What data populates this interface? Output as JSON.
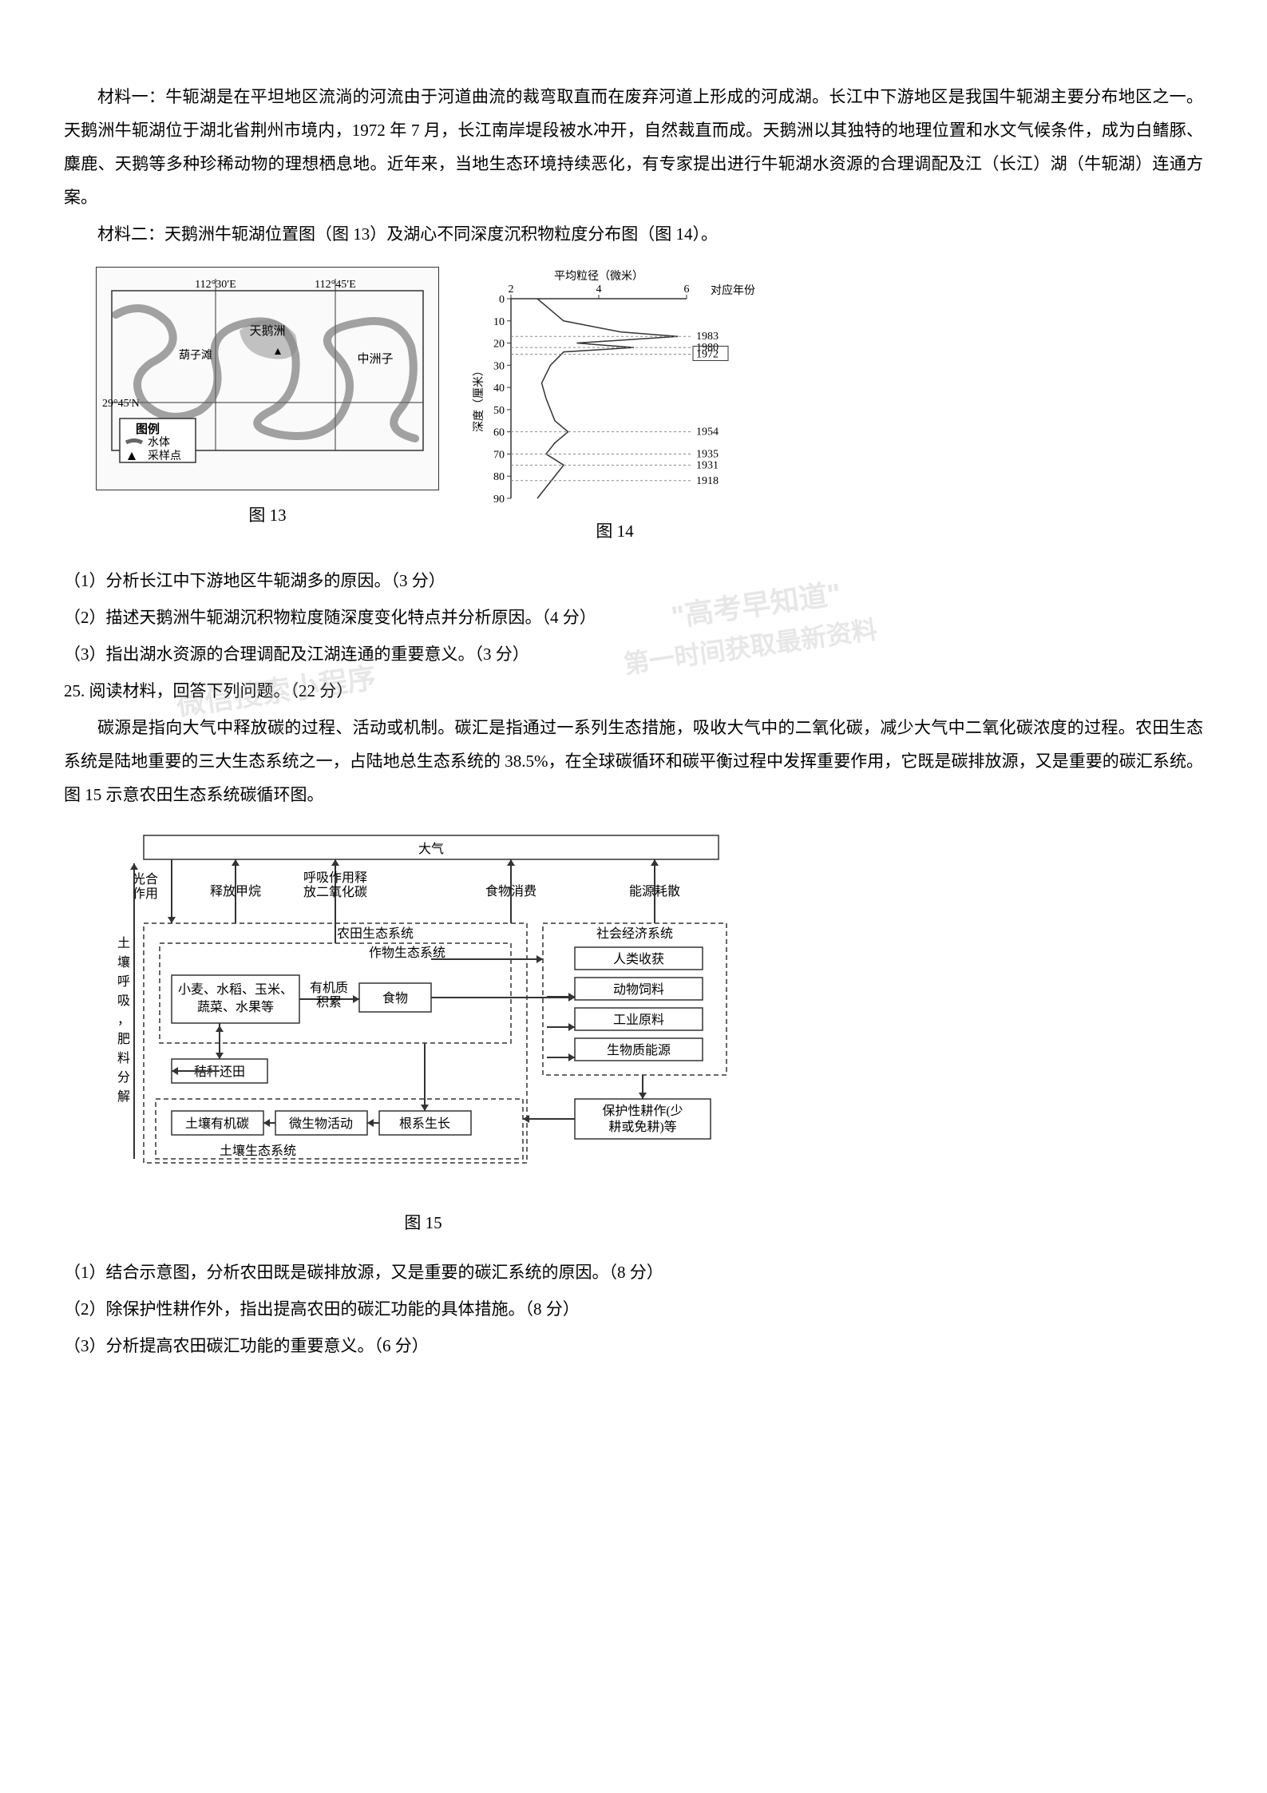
{
  "material1": {
    "p1": "材料一：牛轭湖是在平坦地区流淌的河流由于河道曲流的裁弯取直而在废弃河道上形成的河成湖。长江中下游地区是我国牛轭湖主要分布地区之一。天鹅洲牛轭湖位于湖北省荆州市境内，1972 年 7 月，长江南岸堤段被水冲开，自然裁直而成。天鹅洲以其独特的地理位置和水文气候条件，成为白鳍豚、麋鹿、天鹅等多种珍稀动物的理想栖息地。近年来，当地生态环境持续恶化，有专家提出进行牛轭湖水资源的合理调配及江（长江）湖（牛轭湖）连通方案。",
    "p2": "材料二：天鹅洲牛轭湖位置图（图 13）及湖心不同深度沉积物粒度分布图（图 14）。"
  },
  "map": {
    "caption": "图 13",
    "lon1": "112°30′E",
    "lon2": "112°45′E",
    "lat": "29°45′N",
    "labels": {
      "tianezou": "天鹅洲",
      "hulugang": "葫子滩",
      "zhongzhouzi": "中洲子",
      "legend_title": "图例",
      "legend_water": "水体",
      "legend_sample": "采样点"
    },
    "colors": {
      "border": "#333333",
      "water": "#888888",
      "bg": "#fafafa"
    }
  },
  "chart": {
    "caption": "图 14",
    "x_title": "平均粒径（微米）",
    "x_ticks": [
      "2",
      "4",
      "6"
    ],
    "y_label": "深度（厘米）",
    "year_label": "对应年份",
    "points": [
      {
        "depth": 0,
        "grain": 2.6
      },
      {
        "depth": 5,
        "grain": 2.9
      },
      {
        "depth": 10,
        "grain": 3.2
      },
      {
        "depth": 15,
        "grain": 4.5
      },
      {
        "depth": 17,
        "grain": 5.8
      },
      {
        "depth": 20,
        "grain": 3.5
      },
      {
        "depth": 22,
        "grain": 4.8
      },
      {
        "depth": 24,
        "grain": 3.2
      },
      {
        "depth": 30,
        "grain": 2.9
      },
      {
        "depth": 38,
        "grain": 2.7
      },
      {
        "depth": 45,
        "grain": 2.8
      },
      {
        "depth": 55,
        "grain": 3.0
      },
      {
        "depth": 60,
        "grain": 3.3
      },
      {
        "depth": 65,
        "grain": 3.0
      },
      {
        "depth": 70,
        "grain": 2.8
      },
      {
        "depth": 75,
        "grain": 3.2
      },
      {
        "depth": 80,
        "grain": 3.0
      },
      {
        "depth": 85,
        "grain": 2.8
      },
      {
        "depth": 90,
        "grain": 2.6
      }
    ],
    "year_markers": [
      {
        "depth": 17,
        "year": "1983"
      },
      {
        "depth": 22,
        "year": "1980"
      },
      {
        "depth": 25,
        "year": "1972",
        "boxed": true
      },
      {
        "depth": 60,
        "year": "1954"
      },
      {
        "depth": 70,
        "year": "1935"
      },
      {
        "depth": 75,
        "year": "1931"
      },
      {
        "depth": 82,
        "year": "1918"
      }
    ],
    "y_ticks": [
      0,
      10,
      20,
      30,
      40,
      50,
      60,
      70,
      80,
      90
    ],
    "colors": {
      "axis": "#333333",
      "line": "#333333",
      "dash": "#888888",
      "bg": "#ffffff"
    },
    "xlim": [
      2,
      6
    ],
    "ylim": [
      0,
      90
    ],
    "font_size": 14
  },
  "questions_set1": {
    "q1": "（1）分析长江中下游地区牛轭湖多的原因。（3 分）",
    "q2": "（2）描述天鹅洲牛轭湖沉积物粒度随深度变化特点并分析原因。（4 分）",
    "q3": "（3）指出湖水资源的合理调配及江湖连通的重要意义。（3 分）"
  },
  "q25": {
    "header": "25.  阅读材料，回答下列问题。（22 分）",
    "p1": "碳源是指向大气中释放碳的过程、活动或机制。碳汇是指通过一系列生态措施，吸收大气中的二氧化碳，减少大气中二氧化碳浓度的过程。农田生态系统是陆地重要的三大生态系统之一，占陆地总生态系统的 38.5%，在全球碳循环和碳平衡过程中发挥重要作用，它既是碳排放源，又是重要的碳汇系统。图 15 示意农田生态系统碳循环图。"
  },
  "diagram": {
    "caption": "图 15",
    "top": "大气",
    "arrows_up": {
      "a1_top": "光合",
      "a1_bot": "作用",
      "a2": "释放甲烷",
      "a3_top": "呼吸作用释",
      "a3_bot": "放二氧化碳",
      "a4": "食物消费",
      "a5": "能源耗散"
    },
    "left_label": "土壤呼吸，肥料分解",
    "crop_system": "农田生态系统",
    "crop_sub": "作物生态系统",
    "crops": "小麦、水稻、玉米、蔬菜、水果等",
    "organic_top": "有机质",
    "organic_bot": "积累",
    "food": "食物",
    "social": "社会经济系统",
    "social_items": [
      "人类收获",
      "动物饲料",
      "工业原料",
      "生物质能源"
    ],
    "straw": "秸秆还田",
    "soil_items": [
      "土壤有机碳",
      "微生物活动",
      "根系生长"
    ],
    "soil_system": "土壤生态系统",
    "tillage_top": "保护性耕作(少",
    "tillage_bot": "耕或免耕)等",
    "colors": {
      "border": "#333333",
      "bg": "#ffffff",
      "dash": "#666666"
    },
    "font_size": 16
  },
  "questions_set2": {
    "q1": "（1）结合示意图，分析农田既是碳排放源，又是重要的碳汇系统的原因。（8 分）",
    "q2": "（2）除保护性耕作外，指出提高农田的碳汇功能的具体措施。（8 分）",
    "q3": "（3）分析提高农田碳汇功能的重要意义。（6 分）"
  },
  "watermarks": {
    "w1": "\"高考早知道\"",
    "w2": "微信搜索小程序",
    "w3": "第一时间获取最新资料"
  }
}
